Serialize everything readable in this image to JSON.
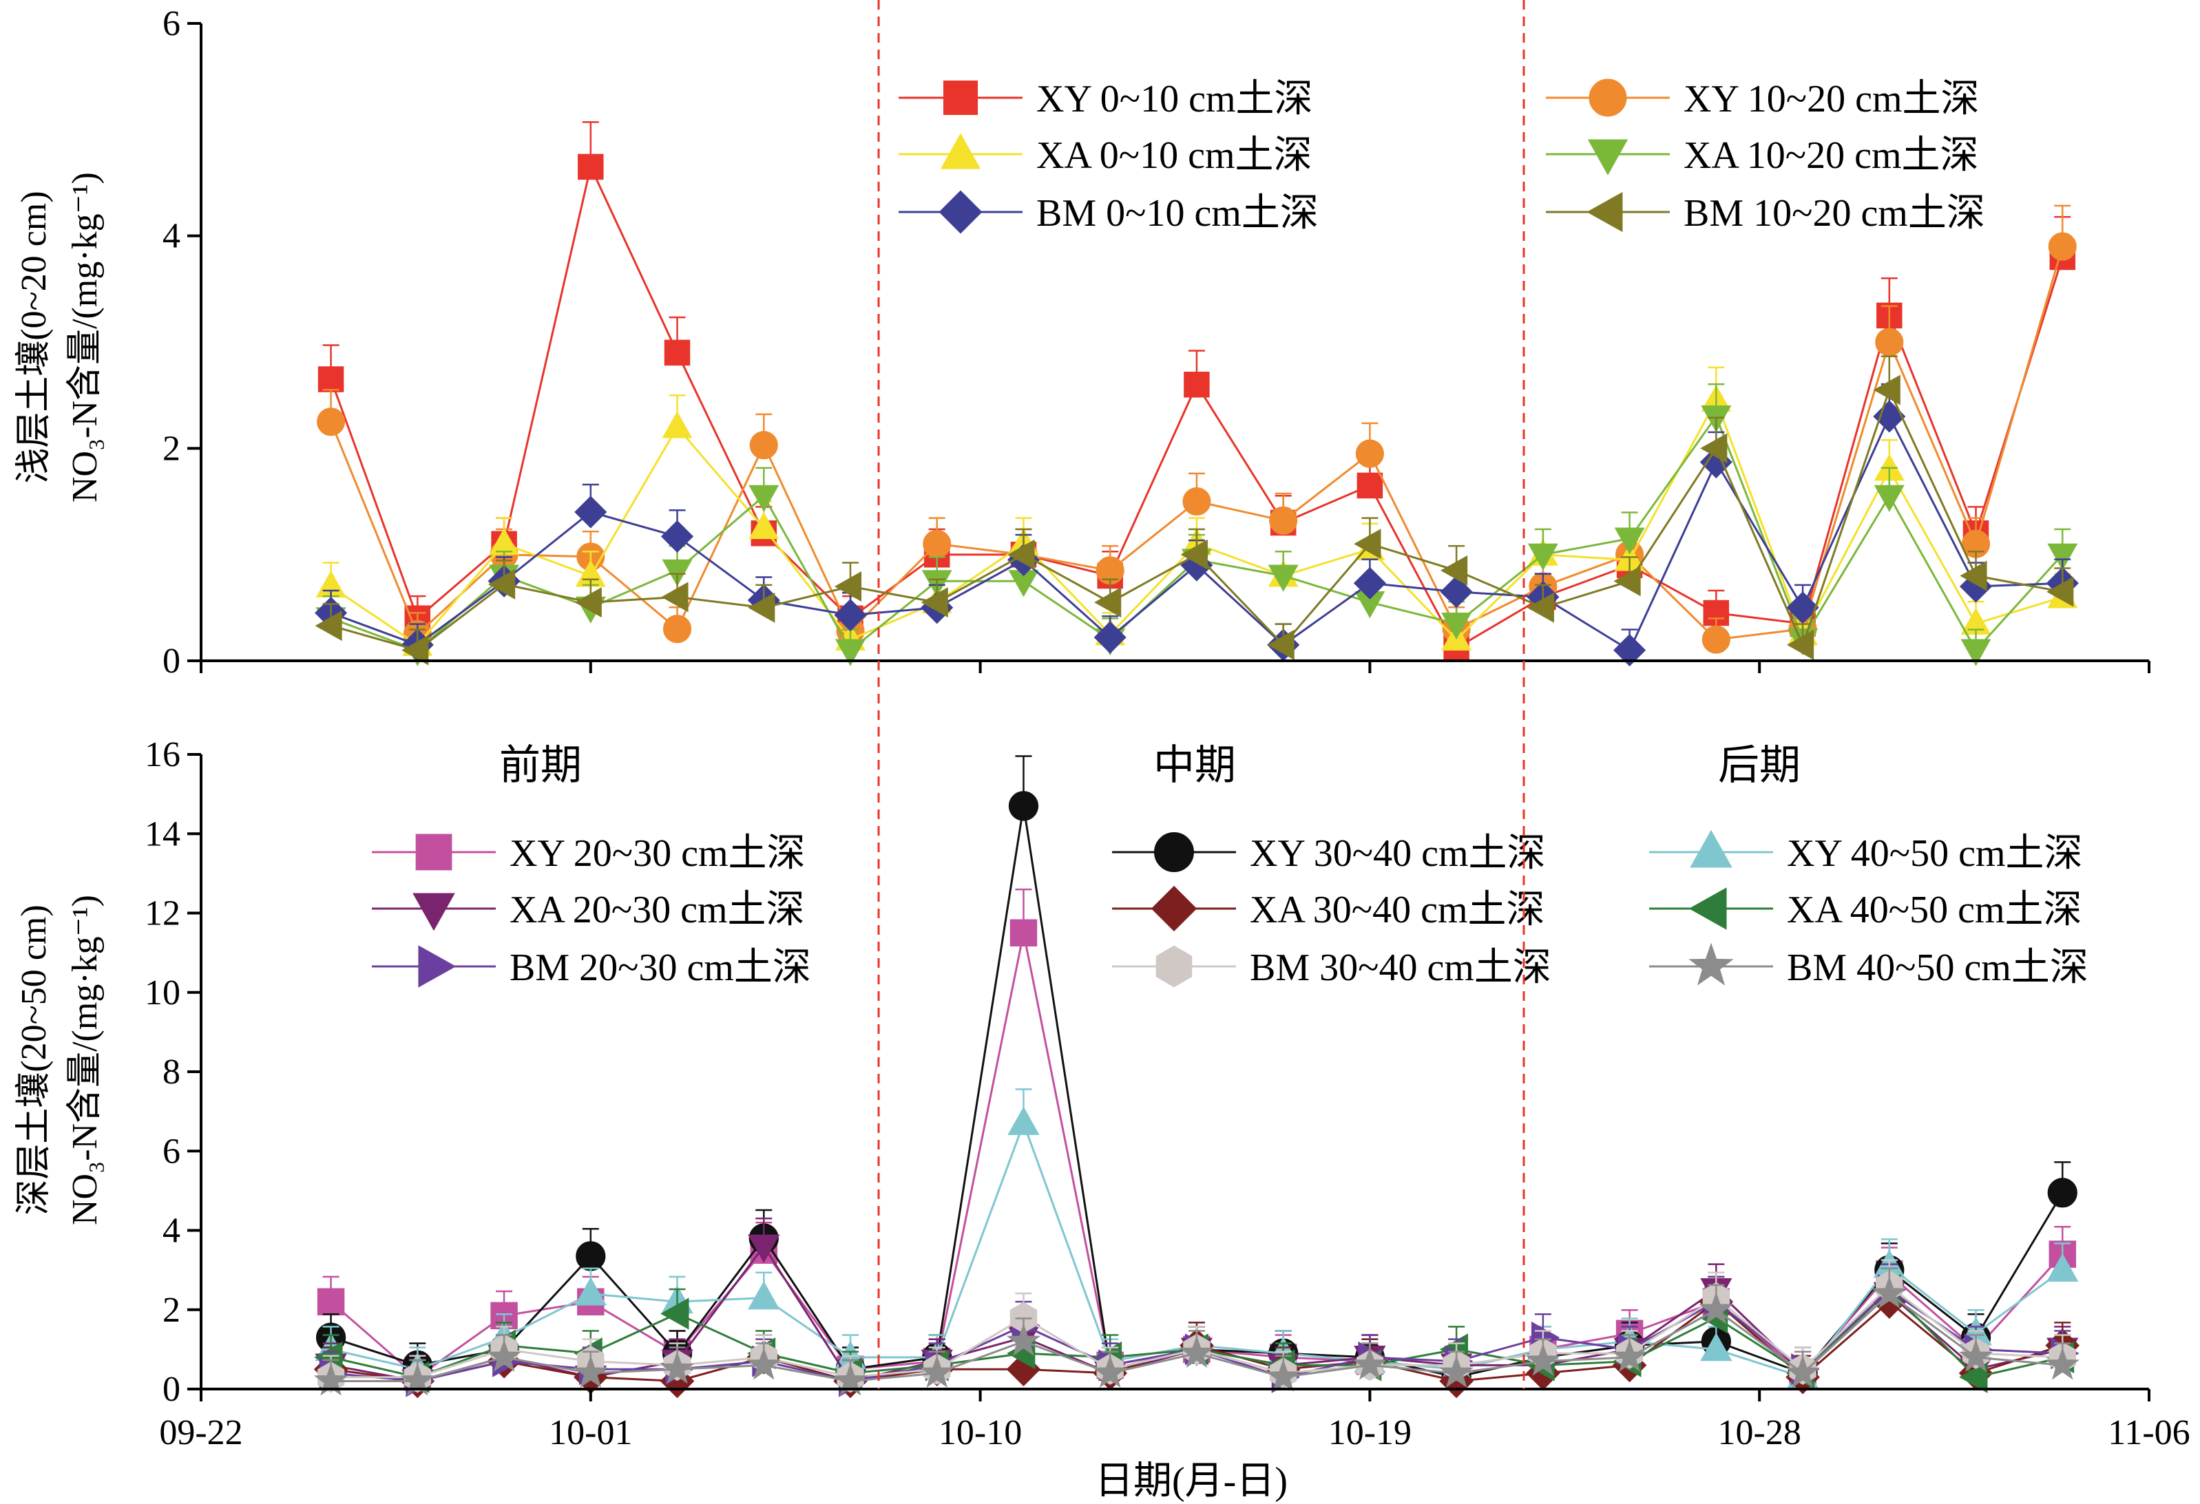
{
  "chart_data": [
    {
      "type": "line",
      "ylabel_line1": "浅层土壤(0~20 cm)",
      "ylabel_line2": "NO₃-N含量/(mg·kg⁻¹)",
      "ylim": [
        0,
        6
      ],
      "yticks": [
        "0",
        "2",
        "4",
        "6"
      ],
      "x": [
        "09-25",
        "09-27",
        "09-29",
        "10-01",
        "10-03",
        "10-05",
        "10-07",
        "10-09",
        "10-11",
        "10-13",
        "10-15",
        "10-17",
        "10-19",
        "10-21",
        "10-23",
        "10-25",
        "10-27",
        "10-29",
        "10-31",
        "11-02",
        "11-04"
      ],
      "series": [
        {
          "name": "XY 0~10 cm土深",
          "color": "#e8342a",
          "marker": "square",
          "values": [
            2.65,
            0.4,
            1.1,
            4.65,
            2.9,
            1.2,
            0.4,
            1.0,
            1.0,
            0.8,
            2.6,
            1.3,
            1.65,
            0.12,
            0.6,
            0.9,
            0.45,
            0.35,
            3.25,
            1.2,
            3.8
          ]
        },
        {
          "name": "XY 10~20 cm土深",
          "color": "#f08a2e",
          "marker": "circle",
          "values": [
            2.25,
            0.25,
            1.0,
            0.98,
            0.3,
            2.03,
            0.28,
            1.1,
            1.0,
            0.85,
            1.5,
            1.32,
            1.95,
            0.3,
            0.7,
            1.0,
            0.2,
            0.3,
            3.0,
            1.1,
            3.9
          ]
        },
        {
          "name": "XA 0~10 cm土深",
          "color": "#f5e12b",
          "marker": "triangle-up",
          "values": [
            0.7,
            0.15,
            1.1,
            0.8,
            2.2,
            1.25,
            0.2,
            0.55,
            1.1,
            0.25,
            1.1,
            0.8,
            1.05,
            0.2,
            1.0,
            0.95,
            2.45,
            0.25,
            1.8,
            0.35,
            0.6
          ]
        },
        {
          "name": "XA 10~20 cm土深",
          "color": "#7bb83a",
          "marker": "triangle-down",
          "values": [
            0.4,
            0.1,
            0.8,
            0.5,
            0.85,
            1.55,
            0.1,
            0.75,
            0.75,
            0.2,
            0.95,
            0.8,
            0.55,
            0.35,
            1.0,
            1.15,
            2.3,
            0.2,
            1.55,
            0.1,
            1.0
          ]
        },
        {
          "name": "BM 0~10 cm土深",
          "color": "#3d3f94",
          "marker": "diamond",
          "values": [
            0.45,
            0.15,
            0.75,
            1.4,
            1.17,
            0.57,
            0.43,
            0.5,
            0.95,
            0.22,
            0.9,
            0.15,
            0.73,
            0.65,
            0.6,
            0.1,
            1.87,
            0.5,
            2.3,
            0.7,
            0.73
          ]
        },
        {
          "name": "BM 10~20 cm土深",
          "color": "#7f7a23",
          "marker": "triangle-left",
          "values": [
            0.33,
            0.1,
            0.72,
            0.55,
            0.6,
            0.5,
            0.7,
            0.55,
            1.0,
            0.55,
            1.0,
            0.15,
            1.1,
            0.85,
            0.5,
            0.75,
            2.0,
            0.15,
            2.55,
            0.8,
            0.65
          ]
        }
      ]
    },
    {
      "type": "line",
      "ylabel_line1": "深层土壤(20~50 cm)",
      "ylabel_line2": "NO₃-N含量/(mg·kg⁻¹)",
      "xlabel": "日期(月-日)",
      "ylim": [
        0,
        16
      ],
      "yticks": [
        "0",
        "2",
        "4",
        "6",
        "8",
        "10",
        "12",
        "14",
        "16"
      ],
      "xticks": [
        "09-22",
        "10-01",
        "10-10",
        "10-19",
        "10-28",
        "11-06"
      ],
      "x": [
        "09-25",
        "09-27",
        "09-29",
        "10-01",
        "10-03",
        "10-05",
        "10-07",
        "10-09",
        "10-11",
        "10-13",
        "10-15",
        "10-17",
        "10-19",
        "10-21",
        "10-23",
        "10-25",
        "10-27",
        "10-29",
        "10-31",
        "11-02",
        "11-04"
      ],
      "periods": [
        "前期",
        "中期",
        "后期"
      ],
      "series": [
        {
          "name": "XY 20~30 cm土深",
          "color": "#c2509f",
          "marker": "square",
          "values": [
            2.2,
            0.3,
            1.85,
            2.2,
            0.9,
            3.5,
            0.5,
            0.7,
            11.5,
            0.6,
            1.0,
            0.8,
            0.7,
            0.5,
            1.0,
            1.4,
            2.2,
            0.4,
            2.9,
            1.0,
            3.4
          ]
        },
        {
          "name": "XY 30~40 cm土深",
          "color": "#111111",
          "marker": "circle",
          "values": [
            1.3,
            0.6,
            1.0,
            3.35,
            0.9,
            3.8,
            0.5,
            0.8,
            14.7,
            0.5,
            1.0,
            0.9,
            0.8,
            0.3,
            0.8,
            1.1,
            1.2,
            0.4,
            3.0,
            1.3,
            4.95
          ]
        },
        {
          "name": "XY 40~50 cm土深",
          "color": "#7fc6cf",
          "marker": "triangle-up",
          "values": [
            1.0,
            0.5,
            1.3,
            2.4,
            2.2,
            2.3,
            0.8,
            0.8,
            6.7,
            0.7,
            1.1,
            0.9,
            0.7,
            0.5,
            1.0,
            1.2,
            1.0,
            0.3,
            3.1,
            1.4,
            3.0
          ]
        },
        {
          "name": "XA 20~30 cm土深",
          "color": "#7a2470",
          "marker": "triangle-down",
          "values": [
            0.6,
            0.2,
            0.8,
            0.3,
            0.7,
            3.6,
            0.2,
            0.7,
            1.3,
            0.4,
            1.0,
            0.6,
            0.8,
            0.6,
            0.6,
            1.0,
            2.5,
            0.4,
            2.4,
            0.5,
            1.0
          ]
        },
        {
          "name": "XA 30~40 cm土深",
          "color": "#7d1f1f",
          "marker": "diamond",
          "values": [
            0.5,
            0.2,
            0.7,
            0.3,
            0.2,
            0.8,
            0.2,
            0.5,
            0.5,
            0.4,
            1.1,
            0.5,
            0.7,
            0.2,
            0.4,
            0.6,
            2.2,
            0.3,
            2.2,
            0.4,
            1.1
          ]
        },
        {
          "name": "XA 40~50 cm土深",
          "color": "#2e7d3a",
          "marker": "triangle-left",
          "values": [
            0.8,
            0.3,
            1.1,
            0.9,
            1.9,
            0.9,
            0.4,
            0.6,
            0.9,
            0.8,
            1.0,
            0.6,
            0.6,
            1.0,
            0.6,
            0.7,
            1.8,
            0.4,
            2.5,
            0.3,
            0.8
          ]
        },
        {
          "name": "BM 20~30 cm土深",
          "color": "#6b3fa0",
          "marker": "triangle-right",
          "values": [
            0.4,
            0.2,
            0.7,
            0.5,
            0.5,
            0.7,
            0.2,
            0.6,
            1.6,
            0.6,
            1.0,
            0.3,
            0.8,
            0.7,
            1.3,
            1.0,
            2.2,
            0.5,
            2.5,
            1.0,
            0.9
          ]
        },
        {
          "name": "BM 30~40 cm土深",
          "color": "#cfc8c4",
          "marker": "hexagon",
          "values": [
            0.3,
            0.3,
            1.0,
            0.7,
            0.6,
            0.8,
            0.3,
            0.5,
            1.8,
            0.5,
            1.0,
            0.4,
            0.6,
            0.6,
            0.9,
            0.9,
            2.3,
            0.5,
            2.6,
            0.9,
            0.8
          ]
        },
        {
          "name": "BM 40~50 cm土深",
          "color": "#8c8c8c",
          "marker": "star",
          "values": [
            0.2,
            0.2,
            0.8,
            0.4,
            0.5,
            0.6,
            0.2,
            0.4,
            1.2,
            0.4,
            0.9,
            0.3,
            0.6,
            0.4,
            0.7,
            0.8,
            2.0,
            0.4,
            2.4,
            0.8,
            0.6
          ]
        }
      ]
    }
  ]
}
